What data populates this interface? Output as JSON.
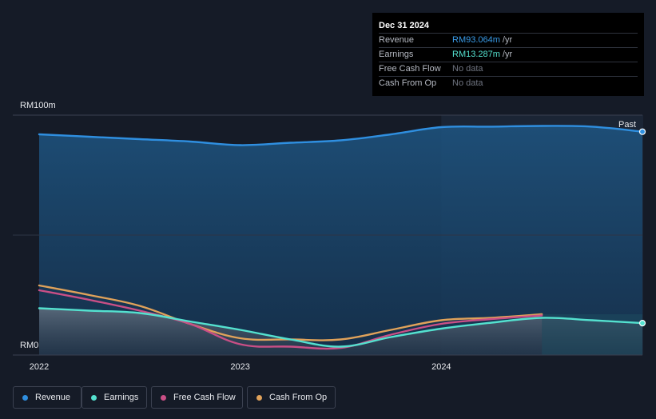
{
  "tooltip": {
    "date": "Dec 31 2024",
    "rows": [
      {
        "label": "Revenue",
        "value": "RM93.064m",
        "unit": "/yr",
        "color": "#3a9ce8"
      },
      {
        "label": "Earnings",
        "value": "RM13.287m",
        "unit": "/yr",
        "color": "#54e1cf"
      },
      {
        "label": "Free Cash Flow",
        "value": "No data",
        "unit": "",
        "color": "#6f7480"
      },
      {
        "label": "Cash From Op",
        "value": "No data",
        "unit": "",
        "color": "#6f7480"
      }
    ]
  },
  "chart_data": {
    "type": "line",
    "y_top_label": "RM100m",
    "y_bottom_label": "RM0",
    "past_label": "Past",
    "ylim": [
      0,
      100
    ],
    "xlim": [
      2022.0,
      2025.0
    ],
    "x_ticks": [
      "2022",
      "2023",
      "2024"
    ],
    "x_tick_values": [
      2022,
      2023,
      2024
    ],
    "past_region_start": 2024.0,
    "series": [
      {
        "name": "Revenue",
        "color": "#2f8fe0",
        "x": [
          2022.0,
          2022.25,
          2022.5,
          2022.75,
          2023.0,
          2023.25,
          2023.5,
          2023.75,
          2024.0,
          2024.25,
          2024.5,
          2024.75,
          2025.0
        ],
        "y": [
          92,
          91,
          90,
          89,
          87.5,
          88.5,
          89.5,
          92,
          95,
          95.2,
          95.5,
          95.2,
          93.1
        ]
      },
      {
        "name": "Earnings",
        "color": "#54e1cf",
        "x": [
          2022.0,
          2022.25,
          2022.5,
          2022.75,
          2023.0,
          2023.25,
          2023.5,
          2023.75,
          2024.0,
          2024.25,
          2024.5,
          2024.75,
          2025.0
        ],
        "y": [
          19.5,
          18.5,
          17.5,
          14,
          10.5,
          6.5,
          3.5,
          7.5,
          11,
          13.5,
          15.5,
          14.5,
          13.3
        ]
      },
      {
        "name": "Free Cash Flow",
        "color": "#c94f86",
        "x": [
          2022.0,
          2022.25,
          2022.5,
          2022.75,
          2023.0,
          2023.25,
          2023.5,
          2023.75,
          2024.0,
          2024.25,
          2024.5
        ],
        "y": [
          27,
          23,
          18.5,
          13,
          4.5,
          3.5,
          3.0,
          8.5,
          13,
          15,
          16.5
        ]
      },
      {
        "name": "Cash From Op",
        "color": "#e0a25a",
        "x": [
          2022.0,
          2022.25,
          2022.5,
          2022.75,
          2023.0,
          2023.25,
          2023.5,
          2023.75,
          2024.0,
          2024.25,
          2024.5
        ],
        "y": [
          29,
          25,
          20.5,
          13,
          7,
          6.5,
          6.5,
          10.5,
          14.5,
          15.5,
          17
        ]
      }
    ],
    "legend_placement": "bottom"
  }
}
